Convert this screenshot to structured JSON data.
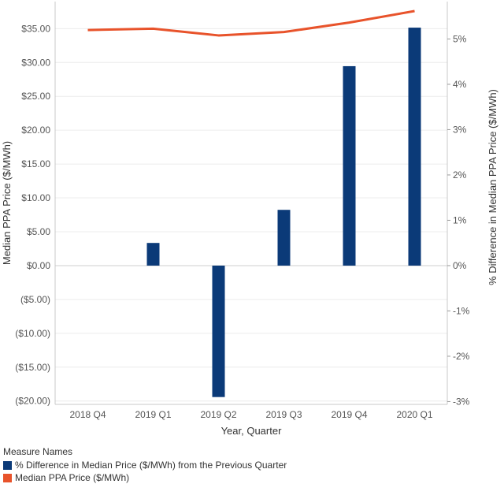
{
  "chart_data": {
    "type": "bar",
    "xlabel": "Year, Quarter",
    "categories": [
      "2018 Q4",
      "2019 Q1",
      "2019 Q2",
      "2019 Q3",
      "2019 Q4",
      "2020 Q1"
    ],
    "series": [
      {
        "name": "% Difference in Median Price ($/MWh) from the Previous Quarter",
        "type": "bar",
        "axis": "right",
        "color": "#0b3a78",
        "values": [
          null,
          0.5,
          -2.9,
          1.23,
          4.4,
          5.25
        ]
      },
      {
        "name": "Median PPA Price ($/MWh)",
        "type": "line",
        "axis": "left",
        "color": "#e8532b",
        "values": [
          34.8,
          35.0,
          34.0,
          34.5,
          35.9,
          37.6
        ]
      }
    ],
    "left_axis": {
      "label": "Median PPA Price ($/MWh)",
      "ylim": [
        -20.5,
        39.0
      ],
      "ticks": [
        35,
        30,
        25,
        20,
        15,
        10,
        5,
        0,
        -5,
        -10,
        -15,
        -20
      ],
      "tick_labels": [
        "$35.00",
        "$30.00",
        "$25.00",
        "$20.00",
        "$15.00",
        "$10.00",
        "$5.00",
        "$0.00",
        "($5.00)",
        "($10.00)",
        "($15.00)",
        "($20.00)"
      ]
    },
    "right_axis": {
      "label": "% Difference in Median PPA Price ($/MWh)",
      "ticks": [
        5,
        4,
        3,
        2,
        1,
        0,
        -1,
        -2,
        -3
      ],
      "tick_labels": [
        "5%",
        "4%",
        "3%",
        "2%",
        "1%",
        "0%",
        "-1%",
        "-2%",
        "-3%"
      ]
    },
    "grid": true,
    "legend": {
      "title": "Measure Names",
      "placement": "bottom-left"
    }
  }
}
